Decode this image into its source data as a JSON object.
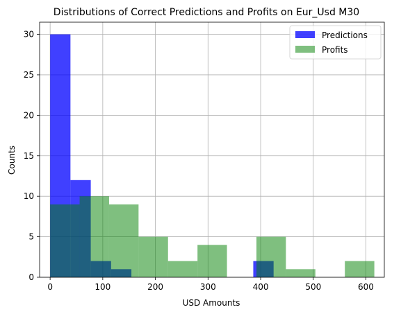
{
  "chart_data": {
    "type": "histogram",
    "title": "Distributions of Correct Predictions and Profits on Eur_Usd M30",
    "xlabel": "USD Amounts",
    "ylabel": "Counts",
    "xlim": [
      -20,
      635
    ],
    "ylim": [
      0,
      31.5
    ],
    "x_ticks": [
      0,
      100,
      200,
      300,
      400,
      500,
      600
    ],
    "y_ticks": [
      0,
      5,
      10,
      15,
      20,
      25,
      30
    ],
    "grid": true,
    "legend_position": "top-right",
    "series": [
      {
        "name": "Predictions",
        "color": "#0000ff",
        "opacity": 0.75,
        "bins": [
          {
            "x0": 0,
            "x1": 38.6,
            "count": 30
          },
          {
            "x0": 38.6,
            "x1": 77.2,
            "count": 12
          },
          {
            "x0": 77.2,
            "x1": 115.8,
            "count": 2
          },
          {
            "x0": 115.8,
            "x1": 154.4,
            "count": 1
          },
          {
            "x0": 154.4,
            "x1": 193.0,
            "count": 0
          },
          {
            "x0": 193.0,
            "x1": 231.6,
            "count": 0
          },
          {
            "x0": 231.6,
            "x1": 270.2,
            "count": 0
          },
          {
            "x0": 270.2,
            "x1": 308.8,
            "count": 0
          },
          {
            "x0": 308.8,
            "x1": 347.4,
            "count": 0
          },
          {
            "x0": 347.4,
            "x1": 386.0,
            "count": 0
          },
          {
            "x0": 386.0,
            "x1": 424.6,
            "count": 2
          }
        ]
      },
      {
        "name": "Profits",
        "color": "#008000",
        "opacity": 0.5,
        "bins": [
          {
            "x0": 0,
            "x1": 56,
            "count": 9
          },
          {
            "x0": 56,
            "x1": 112,
            "count": 10
          },
          {
            "x0": 112,
            "x1": 168,
            "count": 9
          },
          {
            "x0": 168,
            "x1": 224,
            "count": 5
          },
          {
            "x0": 224,
            "x1": 280,
            "count": 2
          },
          {
            "x0": 280,
            "x1": 336,
            "count": 4
          },
          {
            "x0": 336,
            "x1": 392,
            "count": 0
          },
          {
            "x0": 392,
            "x1": 448,
            "count": 5
          },
          {
            "x0": 448,
            "x1": 504,
            "count": 1
          },
          {
            "x0": 504,
            "x1": 560,
            "count": 0
          },
          {
            "x0": 560,
            "x1": 616,
            "count": 2
          }
        ]
      }
    ]
  }
}
